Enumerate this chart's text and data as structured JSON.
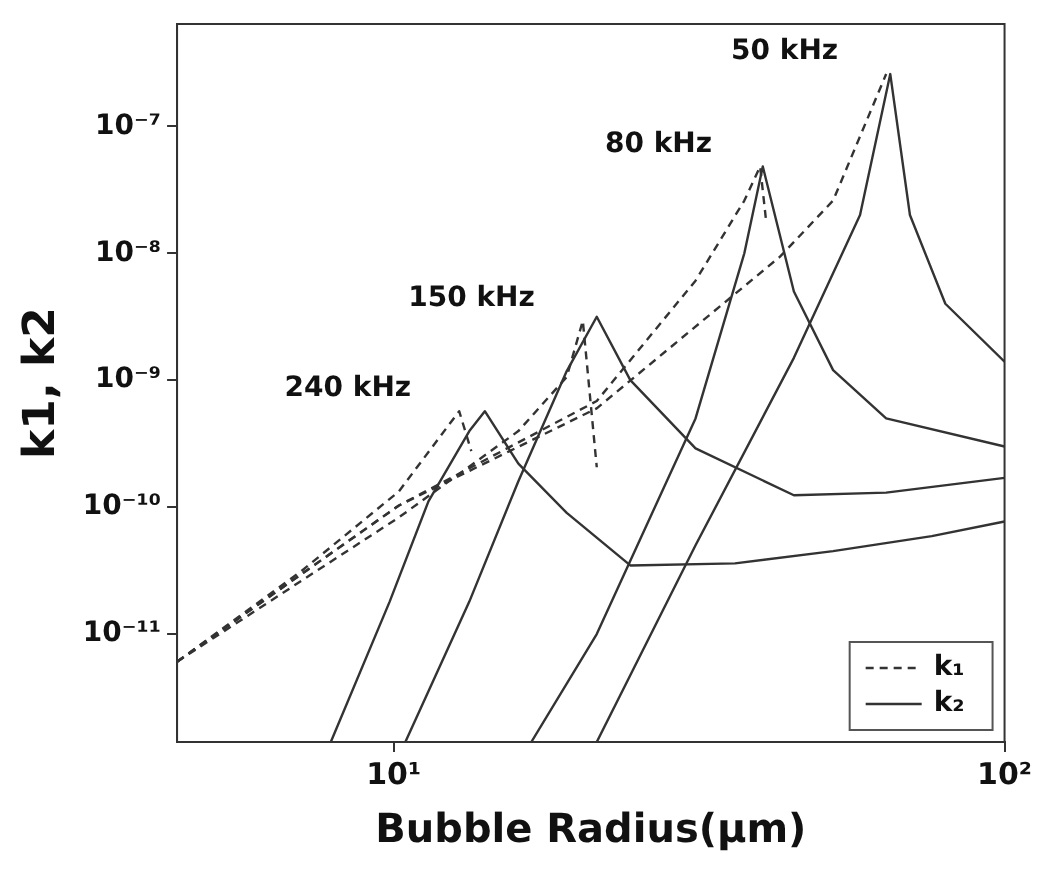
{
  "chart_data": {
    "type": "line",
    "xlabel": "Bubble Radius(μm)",
    "ylabel": "k1, k2",
    "log": "xy",
    "grid": false,
    "legend": "bottom right",
    "marker": "none",
    "xlim": [
      4.42,
      100
    ],
    "ylim": [
      1.41e-12,
      6.4e-07
    ],
    "xticks": [
      {
        "value": 10,
        "label": "10¹"
      },
      {
        "value": 100,
        "label": "10²"
      }
    ],
    "yticks": [
      {
        "value": 1e-11,
        "label": "10⁻¹¹"
      },
      {
        "value": 1e-10,
        "label": "10⁻¹⁰"
      },
      {
        "value": 1e-09,
        "label": "10⁻⁹"
      },
      {
        "value": 1e-08,
        "label": "10⁻⁸"
      },
      {
        "value": 1e-07,
        "label": "10⁻⁷"
      }
    ],
    "annotations": [
      {
        "text": "50 kHz",
        "x": 64,
        "y": 2.58e-07
      },
      {
        "text": "80 kHz",
        "x": 39.8,
        "y": 4.83e-08
      },
      {
        "text": "150 kHz",
        "x": 20.4,
        "y": 2.94e-09
      },
      {
        "text": "240 kHz",
        "x": 12.8,
        "y": 5.7e-10
      }
    ],
    "series": [
      {
        "name": "k₁",
        "color": "#333333",
        "line_style": "dashed",
        "x": [
          4.42,
          7.05,
          10.2,
          12.8,
          13.4
        ],
        "values": [
          6.05e-12,
          3.11e-11,
          1.33e-10,
          5.7e-10,
          2.76e-10
        ]
      },
      {
        "color": "#333333",
        "line_style": "dashed",
        "x": [
          4.42,
          10.2,
          16.0,
          19.2,
          20.4,
          21.5
        ],
        "values": [
          6.05e-12,
          8.3e-11,
          3.97e-10,
          1.06e-09,
          2.94e-09,
          2.06e-10
        ]
      },
      {
        "color": "#333333",
        "line_style": "dashed",
        "x": [
          4.42,
          10.2,
          21.5,
          31.2,
          37.5,
          39.8,
          40.7
        ],
        "values": [
          6.05e-12,
          1.03e-10,
          6.85e-10,
          6.08e-09,
          2.6e-08,
          4.83e-08,
          1.81e-08
        ]
      },
      {
        "color": "#333333",
        "line_style": "dashed",
        "x": [
          4.42,
          10.2,
          21.5,
          42.9,
          52.4,
          64
        ],
        "values": [
          6.05e-12,
          1.03e-10,
          6e-10,
          9.4e-09,
          2.6e-08,
          2.58e-07
        ]
      },
      {
        "name": "k₂",
        "color": "#333333",
        "line_style": "solid",
        "x": [
          7.89,
          9.85,
          11.4,
          13.3,
          14.1,
          16.0,
          19.2,
          24.4,
          36.2,
          52.4,
          76,
          100
        ],
        "values": [
          1.41e-12,
          1.8e-11,
          1.11e-10,
          3.97e-10,
          5.7e-10,
          2.2e-10,
          9e-11,
          3.47e-11,
          3.6e-11,
          4.5e-11,
          5.9e-11,
          7.7e-11
        ]
      },
      {
        "color": "#333333",
        "line_style": "solid",
        "x": [
          10.45,
          13.3,
          16.0,
          19.2,
          21.5,
          24.4,
          31.2,
          45.2,
          64,
          100
        ],
        "values": [
          1.41e-12,
          1.8e-11,
          1.6e-10,
          1.18e-09,
          3.16e-09,
          1e-09,
          2.9e-10,
          1.24e-10,
          1.3e-10,
          1.7e-10
        ]
      },
      {
        "color": "#333333",
        "line_style": "solid",
        "x": [
          16.8,
          21.5,
          31.2,
          37.5,
          40.2,
          45.2,
          52.4,
          64,
          100
        ],
        "values": [
          1.41e-12,
          1e-11,
          5e-10,
          1e-08,
          4.83e-08,
          5e-09,
          1.2e-09,
          5e-10,
          3e-10
        ]
      },
      {
        "color": "#333333",
        "line_style": "solid",
        "x": [
          21.5,
          31.2,
          45.2,
          58,
          65,
          70,
          80,
          100
        ],
        "values": [
          1.41e-12,
          5e-11,
          1.5e-09,
          2e-08,
          2.58e-07,
          2e-08,
          4e-09,
          1.4e-09
        ]
      }
    ]
  }
}
